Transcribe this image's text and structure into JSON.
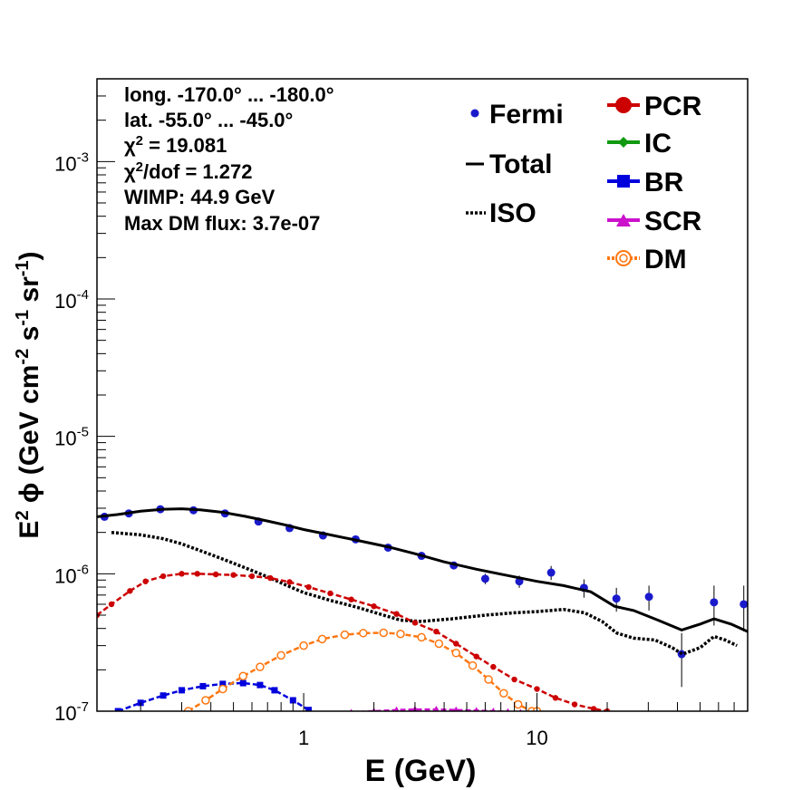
{
  "chart_data": {
    "type": "scatter",
    "x_scale": "log",
    "y_scale": "log",
    "xlim": [
      0.13,
      80
    ],
    "ylim": [
      1e-07,
      0.004
    ],
    "x_ticks": [
      {
        "value": 1,
        "label": "1"
      },
      {
        "value": 10,
        "label": "10"
      }
    ],
    "y_ticks": [
      {
        "value": 1e-07,
        "base": "10",
        "exp": "-7"
      },
      {
        "value": 1e-06,
        "base": "10",
        "exp": "-6"
      },
      {
        "value": 1e-05,
        "base": "10",
        "exp": "-5"
      },
      {
        "value": 0.0001,
        "base": "10",
        "exp": "-4"
      },
      {
        "value": 0.001,
        "base": "10",
        "exp": "-3"
      }
    ],
    "xlabel": "E (GeV)",
    "ylabel": {
      "p1": "E",
      "p1sup": "2",
      "p2": " ϕ (GeV cm",
      "p2sup": "-2",
      "p3": " s",
      "p3sup": "-1",
      "p4": " sr",
      "p4sup": "-1",
      "p5": ")"
    },
    "info": {
      "lines": [
        "long. -170.0° ... -180.0°",
        "lat. -55.0° ... -45.0°"
      ],
      "chi2": {
        "sym": "χ",
        "sup": "2",
        "rest": " = 19.081"
      },
      "chi2dof": {
        "sym": "χ",
        "sup": "2",
        "rest": "/dof = 1.272"
      },
      "wimp": "WIMP: 44.9 GeV",
      "maxdm": "Max DM flux: 3.7e-07"
    },
    "legend": [
      {
        "label": "Fermi",
        "color": "#1a1acc",
        "marker": "dot"
      },
      {
        "label": "Total",
        "color": "#000000",
        "marker": "line"
      },
      {
        "label": "ISO",
        "color": "#000000",
        "marker": "dotted"
      },
      {
        "label": "PCR",
        "color": "#cc0000",
        "marker": "circle"
      },
      {
        "label": "IC",
        "color": "#119911",
        "marker": "cross"
      },
      {
        "label": "BR",
        "color": "#0000dd",
        "marker": "square"
      },
      {
        "label": "SCR",
        "color": "#cc11cc",
        "marker": "triangle"
      },
      {
        "label": "DM",
        "color": "#ff7711",
        "marker": "opencircle"
      }
    ],
    "series": [
      {
        "name": "Fermi",
        "kind": "points",
        "color": "#1a1acc",
        "points": [
          {
            "x": 0.14,
            "y": 2.6e-06,
            "err": 5e-08
          },
          {
            "x": 0.178,
            "y": 2.75e-06,
            "err": 5e-08
          },
          {
            "x": 0.243,
            "y": 2.95e-06,
            "err": 5e-08
          },
          {
            "x": 0.337,
            "y": 2.9e-06,
            "err": 5e-08
          },
          {
            "x": 0.46,
            "y": 2.75e-06,
            "err": 5e-08
          },
          {
            "x": 0.64,
            "y": 2.4e-06,
            "err": 5e-08
          },
          {
            "x": 0.87,
            "y": 2.15e-06,
            "err": 5e-08
          },
          {
            "x": 1.21,
            "y": 1.9e-06,
            "err": 5e-08
          },
          {
            "x": 1.67,
            "y": 1.78e-06,
            "err": 5e-08
          },
          {
            "x": 2.3,
            "y": 1.55e-06,
            "err": 5e-08
          },
          {
            "x": 3.2,
            "y": 1.35e-06,
            "err": 5e-08
          },
          {
            "x": 4.4,
            "y": 1.15e-06,
            "err": 5e-08
          },
          {
            "x": 6.0,
            "y": 9.2e-07,
            "err": 8e-08
          },
          {
            "x": 8.4,
            "y": 8.8e-07,
            "err": 9e-08
          },
          {
            "x": 11.5,
            "y": 1.02e-06,
            "err": 1.2e-07
          },
          {
            "x": 15.9,
            "y": 7.9e-07,
            "err": 1.2e-07
          },
          {
            "x": 21.9,
            "y": 6.6e-07,
            "err": 1.3e-07
          },
          {
            "x": 30.2,
            "y": 6.8e-07,
            "err": 1.4e-07
          },
          {
            "x": 41.7,
            "y": 2.6e-07,
            "err": 1.1e-07
          },
          {
            "x": 57.4,
            "y": 6.2e-07,
            "err": 2e-07
          },
          {
            "x": 77.0,
            "y": 6e-07,
            "err": 2.2e-07
          }
        ]
      },
      {
        "name": "Total",
        "kind": "solid",
        "color": "#000000",
        "x": [
          0.13,
          0.16,
          0.2,
          0.25,
          0.3,
          0.36,
          0.45,
          0.56,
          0.7,
          0.85,
          1.0,
          1.3,
          1.7,
          2.3,
          3.0,
          4.0,
          5.5,
          7.5,
          10.0,
          13.0,
          17.0,
          21.5,
          26.0,
          33.0,
          41.7,
          50.0,
          57.4,
          68.0,
          80.0
        ],
        "y": [
          2.6e-06,
          2.7e-06,
          2.85e-06,
          2.95e-06,
          2.97e-06,
          2.92e-06,
          2.8e-06,
          2.62e-06,
          2.42e-06,
          2.25e-06,
          2.1e-06,
          1.92e-06,
          1.75e-06,
          1.57e-06,
          1.4e-06,
          1.22e-06,
          1.08e-06,
          9.7e-07,
          8.8e-07,
          8.2e-07,
          7.4e-07,
          5.8e-07,
          5.4e-07,
          4.6e-07,
          3.9e-07,
          4.3e-07,
          4.7e-07,
          4.3e-07,
          3.8e-07
        ]
      },
      {
        "name": "ISO",
        "kind": "dotted",
        "color": "#000000",
        "x": [
          0.15,
          0.2,
          0.25,
          0.3,
          0.37,
          0.45,
          0.55,
          0.7,
          0.85,
          1.0,
          1.3,
          1.7,
          2.2,
          2.6,
          3.2,
          4.3,
          6.0,
          8.0,
          10.0,
          13.0,
          16.0,
          19.0,
          22.0,
          26.0,
          32.0,
          38.0,
          42.0,
          50.0,
          57.4,
          64.0,
          72.0
        ],
        "y": [
          2e-06,
          1.92e-06,
          1.8e-06,
          1.65e-06,
          1.45e-06,
          1.28e-06,
          1.12e-06,
          9.5e-07,
          8.2e-07,
          7.3e-07,
          6.4e-07,
          5.7e-07,
          5e-07,
          4.6e-07,
          4.5e-07,
          4.7e-07,
          5e-07,
          5.2e-07,
          5.3e-07,
          5.5e-07,
          5.2e-07,
          4.5e-07,
          3.7e-07,
          3.4e-07,
          3.3e-07,
          2.9e-07,
          2.6e-07,
          2.9e-07,
          3.5e-07,
          3.3e-07,
          3e-07
        ]
      },
      {
        "name": "PCR",
        "kind": "dashed-points",
        "color": "#cc0000",
        "x": [
          0.13,
          0.15,
          0.18,
          0.21,
          0.25,
          0.3,
          0.35,
          0.42,
          0.5,
          0.6,
          0.72,
          0.87,
          1.05,
          1.3,
          1.6,
          2.0,
          2.5,
          3.0,
          3.7,
          4.5,
          5.5,
          6.5,
          8.0,
          10.0,
          12.0,
          14.5,
          17.5,
          20.0
        ],
        "y": [
          5e-07,
          6e-07,
          7.5e-07,
          8.8e-07,
          9.6e-07,
          1e-06,
          1e-06,
          9.9e-07,
          9.8e-07,
          9.6e-07,
          9.3e-07,
          8.7e-07,
          8e-07,
          7.2e-07,
          6.5e-07,
          5.8e-07,
          5.1e-07,
          4.4e-07,
          3.8e-07,
          3.1e-07,
          2.5e-07,
          2.1e-07,
          1.7e-07,
          1.45e-07,
          1.25e-07,
          1.12e-07,
          1.04e-07,
          1e-07
        ]
      },
      {
        "name": "BR",
        "kind": "dashed-squares",
        "color": "#0000dd",
        "x": [
          0.16,
          0.2,
          0.25,
          0.3,
          0.37,
          0.45,
          0.55,
          0.65,
          0.75,
          0.9,
          1.05
        ],
        "y": [
          1e-07,
          1.15e-07,
          1.3e-07,
          1.42e-07,
          1.52e-07,
          1.58e-07,
          1.6e-07,
          1.55e-07,
          1.42e-07,
          1.2e-07,
          1.02e-07
        ]
      },
      {
        "name": "SCR",
        "kind": "dashed-triangles",
        "color": "#cc11cc",
        "x": [
          1.6,
          2.0,
          2.5,
          3.0,
          3.7,
          4.5,
          5.5,
          6.5,
          7.5,
          8.5,
          9.7
        ],
        "y": [
          9.8e-08,
          1e-07,
          1.02e-07,
          1.03e-07,
          1.03e-07,
          1.02e-07,
          1.01e-07,
          1e-07,
          9.9e-08,
          9.8e-08,
          9.7e-08
        ]
      },
      {
        "name": "DM",
        "kind": "dashed-opencircles",
        "color": "#ff7711",
        "x": [
          0.32,
          0.38,
          0.45,
          0.55,
          0.65,
          0.8,
          1.0,
          1.2,
          1.5,
          1.8,
          2.2,
          2.6,
          3.2,
          3.8,
          4.5,
          5.3,
          6.2,
          7.2,
          8.3,
          9.5,
          10.0
        ],
        "y": [
          1e-07,
          1.2e-07,
          1.45e-07,
          1.8e-07,
          2.1e-07,
          2.55e-07,
          3e-07,
          3.35e-07,
          3.6e-07,
          3.7e-07,
          3.72e-07,
          3.65e-07,
          3.45e-07,
          3.1e-07,
          2.65e-07,
          2.15e-07,
          1.7e-07,
          1.35e-07,
          1.12e-07,
          1e-07,
          1e-07
        ]
      }
    ]
  }
}
